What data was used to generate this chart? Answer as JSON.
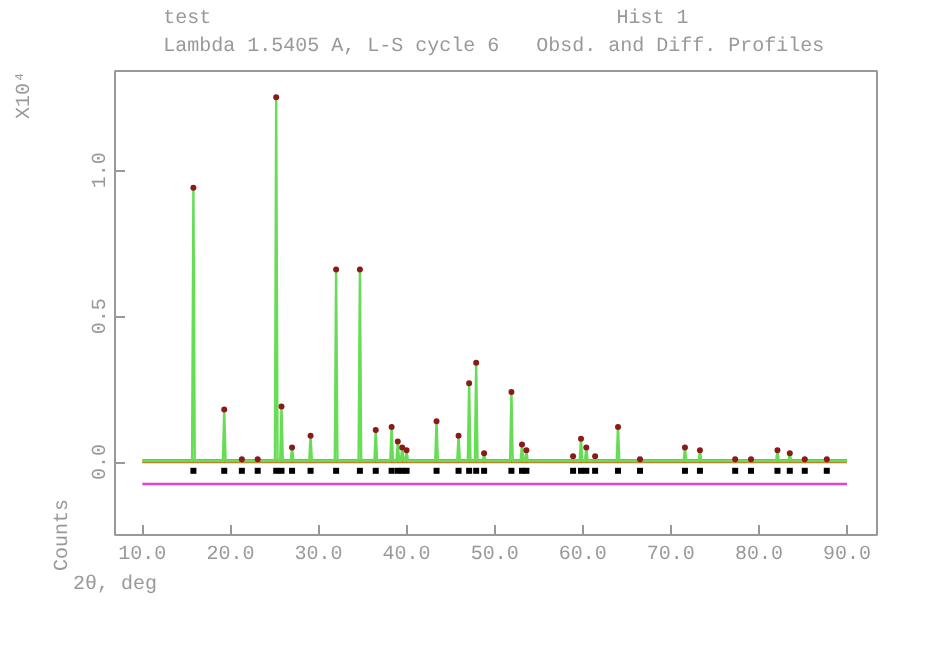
{
  "chart_data": {
    "type": "line",
    "title": "test",
    "subtitle": "Lambda 1.5405 A, L-S cycle    6",
    "annotations": [
      "Hist  1",
      "Obsd. and Diff. Profiles",
      "X10⁴"
    ],
    "xlabel": "2θ, deg",
    "ylabel": "Counts",
    "xlim": [
      6.9,
      93.4
    ],
    "ylim": [
      -0.25,
      1.34
    ],
    "xticks": [
      {
        "value": 10,
        "label": "10.0"
      },
      {
        "value": 20,
        "label": "20.0"
      },
      {
        "value": 30,
        "label": "30.0"
      },
      {
        "value": 40,
        "label": "40.0"
      },
      {
        "value": 50,
        "label": "50.0"
      },
      {
        "value": 60,
        "label": "60.0"
      },
      {
        "value": 70,
        "label": "70.0"
      },
      {
        "value": 80,
        "label": "80.0"
      },
      {
        "value": 90,
        "label": "90.0"
      }
    ],
    "yticks": [
      {
        "value": 0,
        "label": "0.0"
      },
      {
        "value": 0.5,
        "label": "0.5"
      },
      {
        "value": 1.0,
        "label": "1.0"
      }
    ],
    "grid": false,
    "series": [
      {
        "color": "#d2691e",
        "x": [
          10,
          90
        ],
        "values": [
          0.003,
          0.003
        ]
      },
      {
        "color": "#66dd55",
        "x": [
          10,
          15.65,
          15.8,
          15.95,
          19.15,
          19.3,
          19.45,
          21.15,
          21.3,
          21.45,
          22.95,
          23.1,
          23.25,
          25.05,
          25.2,
          25.35,
          25.65,
          25.8,
          25.95,
          26.85,
          27.0,
          27.15,
          28.95,
          29.1,
          29.25,
          31.85,
          32.0,
          32.15,
          34.55,
          34.7,
          34.85,
          36.35,
          36.5,
          36.65,
          38.15,
          38.3,
          38.45,
          38.85,
          39.0,
          39.15,
          39.35,
          39.5,
          39.65,
          39.85,
          40.0,
          40.15,
          43.25,
          43.4,
          43.55,
          45.75,
          45.9,
          46.05,
          46.95,
          47.1,
          47.25,
          47.75,
          47.9,
          48.05,
          48.65,
          48.8,
          48.95,
          51.75,
          51.9,
          52.05,
          52.95,
          53.1,
          53.25,
          53.45,
          53.6,
          53.75,
          58.75,
          58.9,
          59.05,
          59.65,
          59.8,
          59.95,
          60.25,
          60.4,
          60.55,
          61.25,
          61.4,
          61.55,
          63.85,
          64.0,
          64.15,
          66.35,
          66.5,
          66.65,
          71.45,
          71.6,
          71.75,
          73.15,
          73.3,
          73.45,
          77.15,
          77.3,
          77.45,
          78.95,
          79.1,
          79.25,
          81.95,
          82.1,
          82.25,
          83.35,
          83.5,
          83.65,
          85.05,
          85.2,
          85.35,
          87.55,
          87.7,
          87.85,
          90
        ],
        "values": [
          0.003,
          0.003,
          0.94,
          0.003,
          0.003,
          0.18,
          0.003,
          0.003,
          0.01,
          0.003,
          0.003,
          0.01,
          0.003,
          0.003,
          1.25,
          0.003,
          0.003,
          0.19,
          0.003,
          0.003,
          0.05,
          0.003,
          0.003,
          0.09,
          0.003,
          0.003,
          0.66,
          0.003,
          0.003,
          0.66,
          0.003,
          0.003,
          0.11,
          0.003,
          0.003,
          0.12,
          0.003,
          0.003,
          0.07,
          0.003,
          0.003,
          0.05,
          0.003,
          0.003,
          0.04,
          0.003,
          0.003,
          0.14,
          0.003,
          0.003,
          0.09,
          0.003,
          0.003,
          0.27,
          0.003,
          0.003,
          0.34,
          0.003,
          0.003,
          0.03,
          0.003,
          0.003,
          0.24,
          0.003,
          0.003,
          0.06,
          0.003,
          0.003,
          0.04,
          0.003,
          0.003,
          0.02,
          0.003,
          0.003,
          0.08,
          0.003,
          0.003,
          0.05,
          0.003,
          0.003,
          0.02,
          0.003,
          0.003,
          0.12,
          0.003,
          0.003,
          0.01,
          0.003,
          0.003,
          0.05,
          0.003,
          0.003,
          0.04,
          0.003,
          0.003,
          0.01,
          0.003,
          0.003,
          0.01,
          0.003,
          0.003,
          0.04,
          0.003,
          0.003,
          0.03,
          0.003,
          0.003,
          0.01,
          0.003,
          0.003,
          0.01,
          0.003,
          0.003
        ]
      },
      {
        "type": "scatter",
        "marker": "circle",
        "color": "#8b1a1a",
        "x": [
          15.8,
          19.3,
          21.3,
          23.1,
          25.2,
          25.8,
          27.0,
          29.1,
          32.0,
          34.7,
          36.5,
          38.3,
          39.0,
          39.5,
          40.0,
          43.4,
          45.9,
          47.1,
          47.9,
          48.8,
          51.9,
          53.1,
          53.6,
          58.9,
          59.8,
          60.4,
          61.4,
          64.0,
          66.5,
          71.6,
          73.3,
          77.3,
          79.1,
          82.1,
          83.5,
          85.2,
          87.7
        ],
        "values": [
          0.94,
          0.18,
          0.01,
          0.01,
          1.25,
          0.19,
          0.05,
          0.09,
          0.66,
          0.66,
          0.11,
          0.12,
          0.07,
          0.05,
          0.04,
          0.14,
          0.09,
          0.27,
          0.34,
          0.03,
          0.24,
          0.06,
          0.04,
          0.02,
          0.08,
          0.05,
          0.02,
          0.12,
          0.01,
          0.05,
          0.04,
          0.01,
          0.01,
          0.04,
          0.03,
          0.01,
          0.01
        ]
      },
      {
        "type": "scatter",
        "marker": "square",
        "color": "#000000",
        "x": [
          15.8,
          19.3,
          21.3,
          23.1,
          25.2,
          25.8,
          27.0,
          29.1,
          32.0,
          34.7,
          36.5,
          38.3,
          39.0,
          39.5,
          40.0,
          43.4,
          45.9,
          47.1,
          47.9,
          48.8,
          51.9,
          53.1,
          53.6,
          58.9,
          59.8,
          60.4,
          61.4,
          64.0,
          66.5,
          71.6,
          73.3,
          77.3,
          79.1,
          82.1,
          83.5,
          85.2,
          87.7
        ],
        "values": [
          -0.03,
          -0.03,
          -0.03,
          -0.03,
          -0.03,
          -0.03,
          -0.03,
          -0.03,
          -0.03,
          -0.03,
          -0.03,
          -0.03,
          -0.03,
          -0.03,
          -0.03,
          -0.03,
          -0.03,
          -0.03,
          -0.03,
          -0.03,
          -0.03,
          -0.03,
          -0.03,
          -0.03,
          -0.03,
          -0.03,
          -0.03,
          -0.03,
          -0.03,
          -0.03,
          -0.03,
          -0.03,
          -0.03,
          -0.03,
          -0.03,
          -0.03,
          -0.03
        ]
      },
      {
        "color": "#dd44dd",
        "x": [
          10,
          90
        ],
        "values": [
          -0.075,
          -0.075
        ]
      }
    ]
  }
}
